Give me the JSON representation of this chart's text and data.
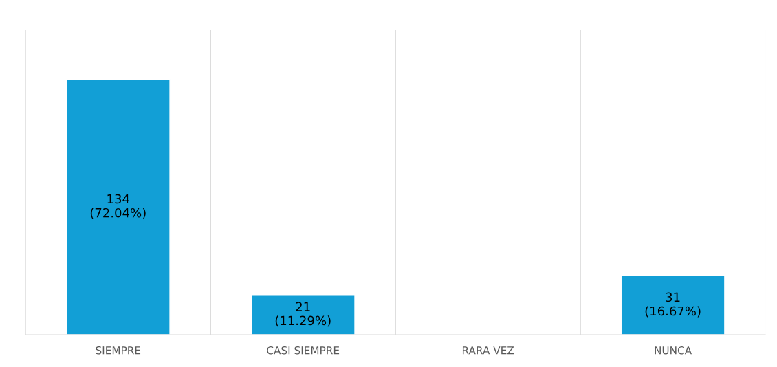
{
  "chart_data": {
    "type": "bar",
    "categories": [
      "SIEMPRE",
      "CASI SIEMPRE",
      "RARA VEZ",
      "NUNCA"
    ],
    "values": [
      134,
      21,
      null,
      31
    ],
    "value_labels": [
      "134\n(72.04%)",
      "21\n(11.29%)",
      null,
      "31\n(16.67%)"
    ],
    "color": "#129fd6",
    "ylim": [
      0,
      160
    ],
    "grid": "x"
  }
}
